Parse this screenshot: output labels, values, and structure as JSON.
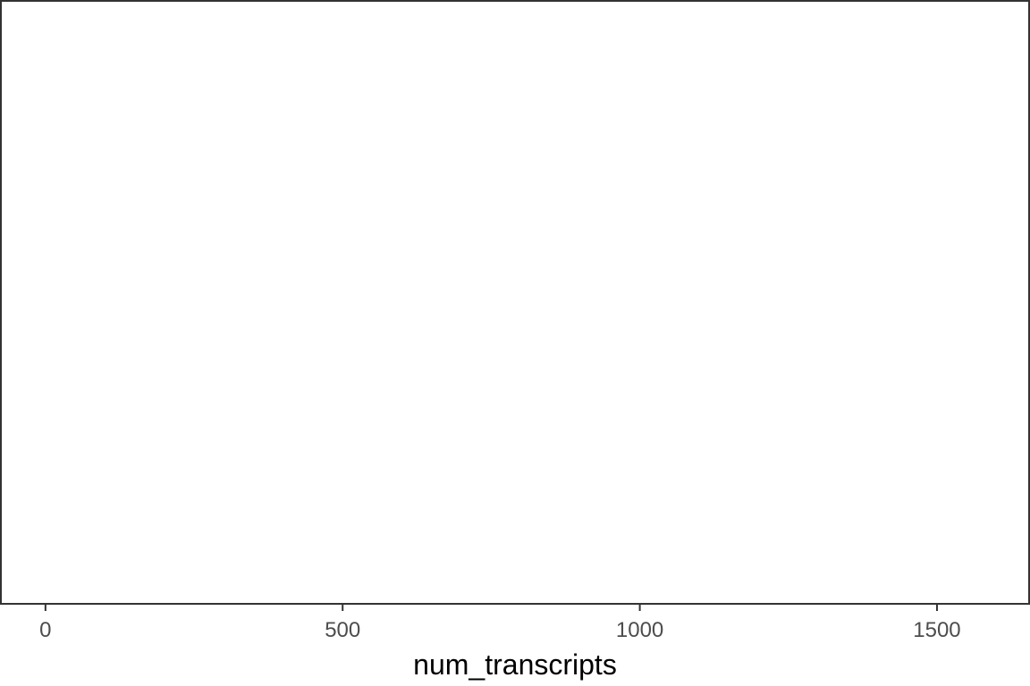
{
  "chart_data": {
    "type": "scatter",
    "title": "",
    "xlabel": "num_transcripts",
    "ylabel": "",
    "xlim": [
      -75,
      1655
    ],
    "x_ticks": [
      0,
      500,
      1000,
      1500
    ],
    "x_tick_labels": [
      "0",
      "500",
      "1000",
      "1500"
    ],
    "y_ticks": [],
    "series": [],
    "grid": false,
    "legend": "none",
    "colors": {
      "panel_border": "#333333",
      "tick": "#333333",
      "tick_label": "#4d4d4d",
      "axis_title": "#000000",
      "background": "#ffffff"
    }
  }
}
